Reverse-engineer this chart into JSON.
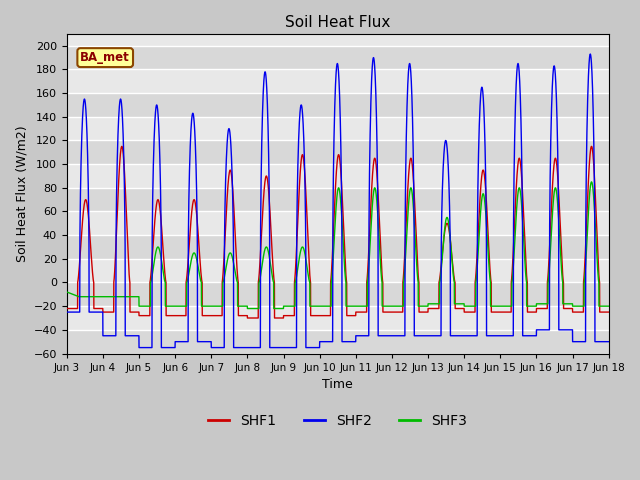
{
  "title": "Soil Heat Flux",
  "xlabel": "Time",
  "ylabel": "Soil Heat Flux (W/m2)",
  "ylim": [
    -60,
    210
  ],
  "yticks": [
    -60,
    -40,
    -20,
    0,
    20,
    40,
    60,
    80,
    100,
    120,
    140,
    160,
    180,
    200
  ],
  "xtick_labels": [
    "Jun 3",
    "Jun 4",
    "Jun 5",
    "Jun 6",
    "Jun 7",
    "Jun 8",
    "Jun 9",
    "Jun 10",
    "Jun 11",
    "Jun 12",
    "Jun 13",
    "Jun 14",
    "Jun 15",
    "Jun 16",
    "Jun 17",
    "Jun 18"
  ],
  "annotation_text": "BA_met",
  "shf1_color": "#cc0000",
  "shf2_color": "#0000ee",
  "shf3_color": "#00bb00",
  "legend_labels": [
    "SHF1",
    "SHF2",
    "SHF3"
  ],
  "fig_bg_color": "#c8c8c8",
  "plot_bg_color": "#e8e8e8",
  "n_days": 15,
  "pts_per_day": 288,
  "shf2_peaks": [
    155,
    155,
    150,
    143,
    130,
    178,
    150,
    185,
    190,
    185,
    120,
    165,
    185,
    183,
    193
  ],
  "shf2_mins": [
    -25,
    -45,
    -55,
    -50,
    -55,
    -55,
    -55,
    -50,
    -45,
    -45,
    -45,
    -45,
    -45,
    -40,
    -50
  ],
  "shf1_peaks": [
    70,
    115,
    70,
    70,
    95,
    90,
    108,
    108,
    105,
    105,
    50,
    95,
    105,
    105,
    115
  ],
  "shf1_mins": [
    -22,
    -25,
    -28,
    -28,
    -28,
    -30,
    -28,
    -28,
    -25,
    -25,
    -22,
    -25,
    -25,
    -22,
    -25
  ],
  "shf3_peaks": [
    -999,
    -999,
    30,
    25,
    25,
    30,
    30,
    80,
    80,
    80,
    55,
    75,
    80,
    80,
    85
  ],
  "shf3_mins": [
    -12,
    -12,
    -20,
    -20,
    -20,
    -22,
    -20,
    -20,
    -20,
    -20,
    -18,
    -20,
    -20,
    -18,
    -20
  ]
}
